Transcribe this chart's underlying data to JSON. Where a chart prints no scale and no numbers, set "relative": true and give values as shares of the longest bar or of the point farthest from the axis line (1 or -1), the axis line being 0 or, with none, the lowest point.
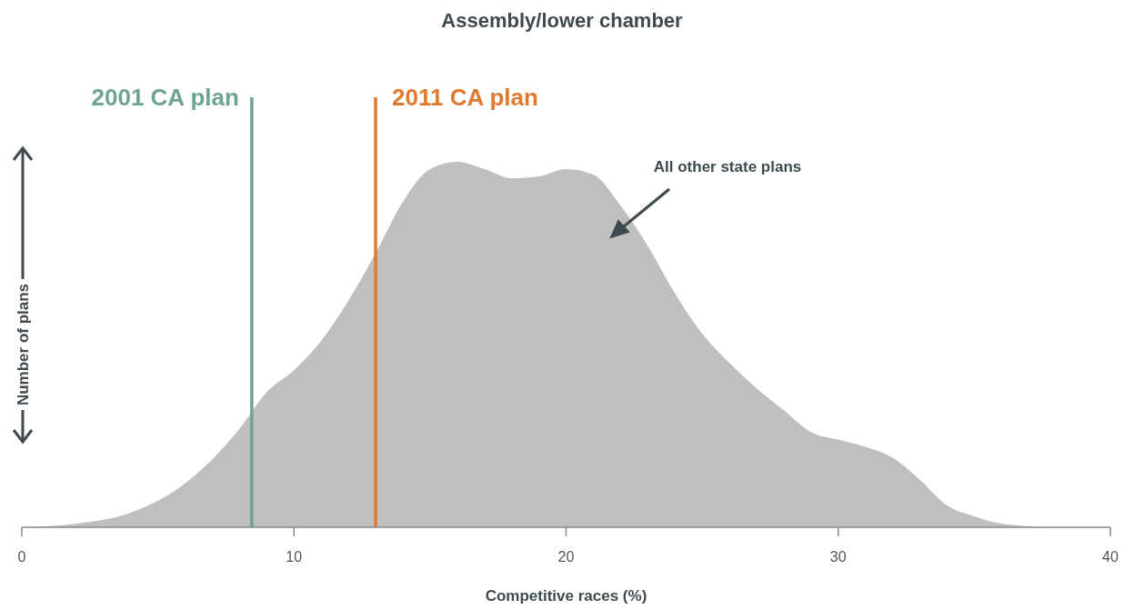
{
  "chart_data": {
    "type": "area",
    "title": "Assembly/lower chamber",
    "xlabel": "Competitive races (%)",
    "ylabel": "Number of plans",
    "relative": true,
    "x": [
      0,
      2,
      4,
      6,
      8,
      9,
      10,
      11,
      12,
      13,
      14,
      15,
      16,
      17,
      18,
      19,
      20,
      21,
      22,
      23,
      24,
      25,
      26,
      27,
      28,
      29,
      30,
      31,
      32,
      33,
      34,
      35,
      36,
      38,
      40
    ],
    "series": [
      {
        "color": "#bfbfbf",
        "values": [
          0,
          0.01,
          0.04,
          0.12,
          0.27,
          0.37,
          0.43,
          0.51,
          0.62,
          0.75,
          0.89,
          0.98,
          1.0,
          0.98,
          0.955,
          0.96,
          0.98,
          0.965,
          0.88,
          0.77,
          0.64,
          0.53,
          0.45,
          0.38,
          0.32,
          0.26,
          0.24,
          0.22,
          0.19,
          0.13,
          0.06,
          0.03,
          0.01,
          0,
          0
        ]
      }
    ],
    "xlim": [
      0,
      40
    ],
    "xticks": [
      0,
      10,
      20,
      30,
      40
    ],
    "ref_lines": [
      {
        "axis": "x",
        "value": 8.45,
        "label": "2001 CA plan",
        "color": "#6fa58f"
      },
      {
        "axis": "x",
        "value": 13.0,
        "label": "2011 CA plan",
        "color": "#e07a2e"
      }
    ],
    "annotations": [
      "All other state plans"
    ]
  }
}
